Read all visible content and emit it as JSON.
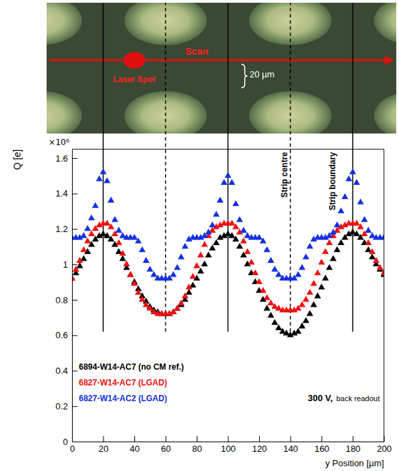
{
  "chart_data": {
    "type": "scatter",
    "x_label": "y Position [µm]",
    "y_label": "Q [e]",
    "y_multiplier": "×10⁶",
    "marker": "triangle",
    "legend": "lower left",
    "xlim": [
      0,
      200
    ],
    "xticks": [
      0,
      20,
      40,
      60,
      80,
      100,
      120,
      140,
      160,
      180,
      200
    ],
    "ylim": [
      0,
      1.65
    ],
    "yticks": [
      0,
      0.2,
      0.4,
      0.6,
      0.8,
      1,
      1.2,
      1.4,
      1.6
    ],
    "x": [
      0,
      2.5,
      5,
      7.5,
      10,
      12.5,
      15,
      17.5,
      20,
      22.5,
      25,
      27.5,
      30,
      32.5,
      35,
      37.5,
      40,
      42.5,
      45,
      47.5,
      50,
      52.5,
      55,
      57.5,
      60,
      62.5,
      65,
      67.5,
      70,
      72.5,
      75,
      77.5,
      80,
      82.5,
      85,
      87.5,
      90,
      92.5,
      95,
      97.5,
      100,
      102.5,
      105,
      107.5,
      110,
      112.5,
      115,
      117.5,
      120,
      122.5,
      125,
      127.5,
      130,
      132.5,
      135,
      137.5,
      140,
      142.5,
      145,
      147.5,
      150,
      152.5,
      155,
      157.5,
      160,
      162.5,
      165,
      167.5,
      170,
      172.5,
      175,
      177.5,
      180,
      182.5,
      185,
      187.5,
      190,
      192.5,
      195,
      197.5,
      200
    ],
    "series": [
      {
        "name": "6894-W14-AC7 (no CM ref.)",
        "color": "#000000",
        "values": [
          0.92,
          0.95,
          0.99,
          1.03,
          1.07,
          1.11,
          1.14,
          1.16,
          1.17,
          1.16,
          1.14,
          1.11,
          1.07,
          1.03,
          0.98,
          0.94,
          0.9,
          0.86,
          0.82,
          0.79,
          0.76,
          0.74,
          0.73,
          0.72,
          0.72,
          0.72,
          0.73,
          0.75,
          0.77,
          0.8,
          0.84,
          0.88,
          0.92,
          0.96,
          1.0,
          1.05,
          1.09,
          1.12,
          1.15,
          1.16,
          1.17,
          1.16,
          1.14,
          1.1,
          1.05,
          1.0,
          0.95,
          0.9,
          0.85,
          0.8,
          0.75,
          0.71,
          0.67,
          0.64,
          0.62,
          0.61,
          0.6,
          0.61,
          0.62,
          0.65,
          0.68,
          0.72,
          0.77,
          0.82,
          0.87,
          0.92,
          0.98,
          1.03,
          1.08,
          1.12,
          1.15,
          1.17,
          1.18,
          1.17,
          1.15,
          1.12,
          1.08,
          1.04,
          1.0,
          0.97,
          0.94
        ]
      },
      {
        "name": "6827-W14-AC7 (LGAD)",
        "color": "#ee1111",
        "values": [
          0.92,
          0.97,
          1.02,
          1.08,
          1.13,
          1.17,
          1.2,
          1.22,
          1.23,
          1.23,
          1.21,
          1.17,
          1.12,
          1.06,
          1.0,
          0.94,
          0.89,
          0.84,
          0.8,
          0.77,
          0.75,
          0.73,
          0.72,
          0.72,
          0.72,
          0.72,
          0.73,
          0.75,
          0.78,
          0.82,
          0.87,
          0.93,
          0.99,
          1.05,
          1.11,
          1.16,
          1.19,
          1.21,
          1.22,
          1.23,
          1.23,
          1.23,
          1.21,
          1.18,
          1.13,
          1.07,
          1.01,
          0.95,
          0.9,
          0.85,
          0.81,
          0.78,
          0.76,
          0.75,
          0.74,
          0.74,
          0.74,
          0.74,
          0.75,
          0.77,
          0.8,
          0.84,
          0.89,
          0.95,
          1.01,
          1.07,
          1.12,
          1.16,
          1.19,
          1.21,
          1.22,
          1.23,
          1.23,
          1.23,
          1.21,
          1.17,
          1.12,
          1.07,
          1.02,
          0.98,
          0.95
        ]
      },
      {
        "name": "6827-W14-AC2 (LGAD)",
        "color": "#1530e0",
        "values": [
          1.15,
          1.15,
          1.15,
          1.16,
          1.2,
          1.26,
          1.33,
          1.48,
          1.52,
          1.47,
          1.36,
          1.25,
          1.19,
          1.16,
          1.15,
          1.15,
          1.15,
          1.13,
          1.08,
          1.02,
          0.97,
          0.94,
          0.92,
          0.92,
          0.92,
          0.92,
          0.94,
          0.98,
          1.04,
          1.1,
          1.14,
          1.15,
          1.15,
          1.15,
          1.16,
          1.18,
          1.22,
          1.28,
          1.36,
          1.46,
          1.5,
          1.46,
          1.34,
          1.25,
          1.19,
          1.16,
          1.15,
          1.15,
          1.15,
          1.13,
          1.08,
          1.02,
          0.97,
          0.94,
          0.92,
          0.92,
          0.92,
          0.92,
          0.94,
          0.98,
          1.04,
          1.1,
          1.14,
          1.15,
          1.15,
          1.15,
          1.16,
          1.18,
          1.22,
          1.3,
          1.38,
          1.48,
          1.52,
          1.46,
          1.35,
          1.25,
          1.19,
          1.16,
          1.15,
          1.15,
          1.15
        ]
      }
    ],
    "reference_lines": {
      "strip_centre": [
        60,
        140
      ],
      "strip_boundary": [
        20,
        100,
        180
      ],
      "from": 0.62
    },
    "annotations": {
      "strip_centre": "Strip centre",
      "strip_boundary": "Strip boundary",
      "laser": "Laser Spot",
      "scan": "Scan",
      "width": "20 µm",
      "voltage": "300 V,",
      "readout": "back readout"
    }
  }
}
